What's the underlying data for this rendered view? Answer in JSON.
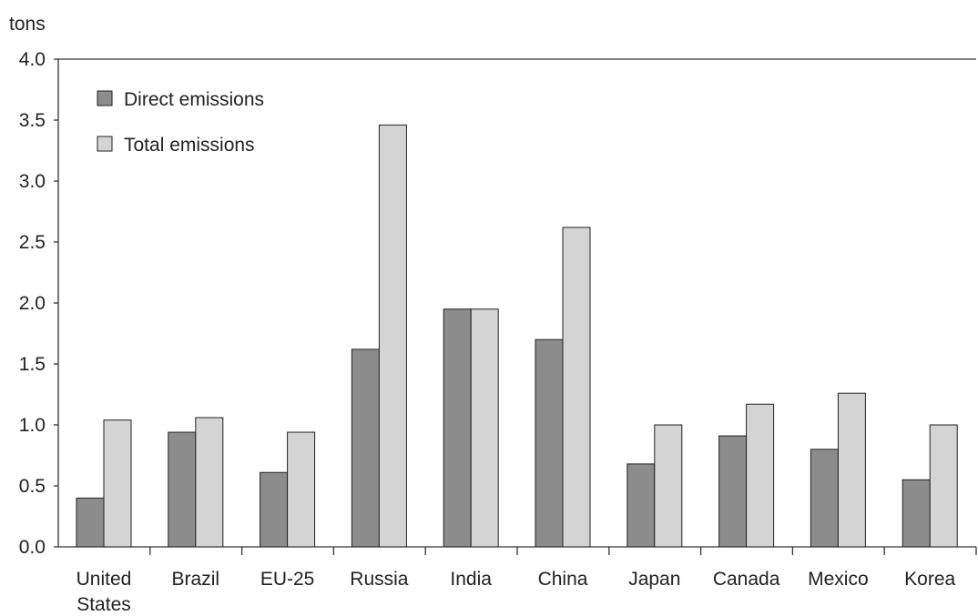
{
  "chart_data": {
    "type": "bar",
    "title": "",
    "ylabel": "tons",
    "xlabel": "",
    "ylim": [
      0,
      4.0
    ],
    "yticks": [
      "0.0",
      "0.5",
      "1.0",
      "1.5",
      "2.0",
      "2.5",
      "3.0",
      "3.5",
      "4.0"
    ],
    "categories": [
      [
        "United",
        "States"
      ],
      [
        "Brazil"
      ],
      [
        "EU-25"
      ],
      [
        "Russia"
      ],
      [
        "India"
      ],
      [
        "China"
      ],
      [
        "Japan"
      ],
      [
        "Canada"
      ],
      [
        "Mexico"
      ],
      [
        "Korea"
      ]
    ],
    "series": [
      {
        "name": "Direct emissions",
        "color": "#8c8c8c",
        "values": [
          0.4,
          0.94,
          0.61,
          1.62,
          1.95,
          1.7,
          0.68,
          0.91,
          0.8,
          0.55
        ]
      },
      {
        "name": "Total emissions",
        "color": "#d4d4d4",
        "values": [
          1.04,
          1.06,
          0.94,
          3.46,
          1.95,
          2.62,
          1.0,
          1.17,
          1.26,
          1.0
        ]
      }
    ],
    "legend_position": "top-left",
    "grid": false
  }
}
